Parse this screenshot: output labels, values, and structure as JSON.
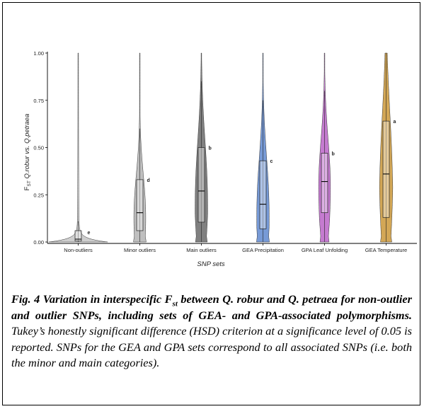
{
  "chart_data": {
    "type": "violin",
    "x_label": "SNP sets",
    "y_label": {
      "prefix": "F",
      "subscript": "ST",
      "suffix": " Q.robur vs. Q.petraea"
    },
    "y_range": [
      0,
      1.0
    ],
    "y_ticks": [
      "0.00",
      "0.25",
      "0.50",
      "0.75",
      "1.00"
    ],
    "grid": false,
    "categories": [
      "Non-outliers",
      "Minor outliers",
      "Main outliers",
      "GEA Precipitation",
      "GPA Leaf Unfolding",
      "GEA Temperature"
    ],
    "series": [
      {
        "category": "Non-outliers",
        "color": "#bdbdbd",
        "q1": 0.005,
        "median": 0.015,
        "q3": 0.06,
        "whisker_low": 0.0,
        "whisker_high": 0.11,
        "max": 1.0,
        "letter": "e"
      },
      {
        "category": "Minor outliers",
        "color": "#a9a9a9",
        "q1": 0.06,
        "median": 0.155,
        "q3": 0.33,
        "whisker_low": 0.0,
        "whisker_high": 0.6,
        "max": 1.0,
        "letter": "d"
      },
      {
        "category": "Main outliers",
        "color": "#555555",
        "q1": 0.105,
        "median": 0.27,
        "q3": 0.5,
        "whisker_low": 0.0,
        "whisker_high": 0.85,
        "max": 1.0,
        "letter": "b"
      },
      {
        "category": "GEA Precipitation",
        "color": "#4a78c8",
        "q1": 0.07,
        "median": 0.2,
        "q3": 0.43,
        "whisker_low": 0.0,
        "whisker_high": 0.75,
        "max": 1.0,
        "letter": "c"
      },
      {
        "category": "GPA Leaf Unfolding",
        "color": "#b24fc0",
        "q1": 0.155,
        "median": 0.32,
        "q3": 0.47,
        "whisker_low": 0.0,
        "whisker_high": 0.8,
        "max": 1.0,
        "letter": "b"
      },
      {
        "category": "GEA Temperature",
        "color": "#c48a1e",
        "q1": 0.13,
        "median": 0.36,
        "q3": 0.64,
        "whisker_low": 0.0,
        "whisker_high": 1.0,
        "max": 1.0,
        "letter": "a"
      }
    ]
  },
  "caption": {
    "fig_label": "Fig. 4",
    "bold_a": " Variation in interspecific F",
    "bold_sub": "st",
    "bold_b": " between Q. robur and Q. petraea for non-outlier and outlier SNPs, including sets of GEA- and GPA-associated polymorphisms.",
    "body": " Tukey’s honestly significant difference (HSD) criterion at a significance level of 0.05 is reported. SNPs for the GEA and GPA sets correspond to all associated SNPs (i.e. both the minor and main categories)."
  }
}
